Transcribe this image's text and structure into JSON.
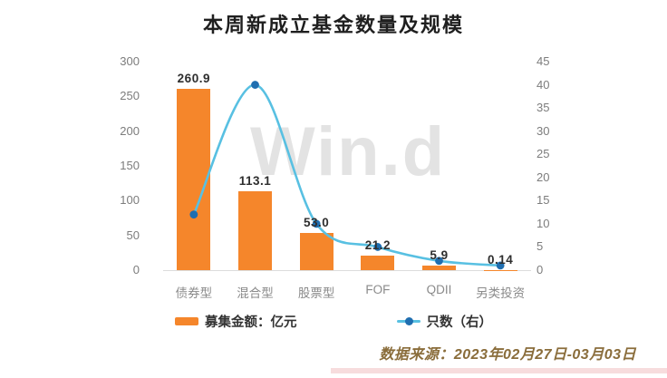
{
  "title": "本周新成立基金数量及规模",
  "watermark": "Win.d",
  "source_note": "数据来源：2023年02月27日-03月03日",
  "legend": [
    {
      "label": "募集金额：亿元",
      "type": "bar"
    },
    {
      "label": "只数（右）",
      "type": "line"
    }
  ],
  "colors": {
    "bar": "#F5862B",
    "line": "#58C0E2",
    "marker": "#1F6EB0",
    "axis_text": "#7c7c7c",
    "bar_label_text": "#2e2e2e",
    "category_text": "#8a8a8a",
    "source_text": "#8a6d3b",
    "watermark": "#c8c8c8",
    "axis_line": "#dcdcdc",
    "source_underline": "#f3c9cb"
  },
  "chart_data": {
    "type": "bar",
    "categories": [
      "债券型",
      "混合型",
      "股票型",
      "FOF",
      "QDII",
      "另类投资"
    ],
    "series": [
      {
        "name": "募集金额：亿元",
        "type": "bar",
        "axis": "left",
        "values": [
          260.9,
          113.1,
          53.0,
          21.2,
          5.9,
          0.14
        ],
        "labels": [
          "260.9",
          "113.1",
          "53.0",
          "21.2",
          "5.9",
          "0.14"
        ]
      },
      {
        "name": "只数（右）",
        "type": "line",
        "axis": "right",
        "values": [
          12,
          40,
          10,
          5,
          2,
          1
        ]
      }
    ],
    "left_axis": {
      "ticks": [
        0,
        50,
        100,
        150,
        200,
        250,
        300
      ],
      "min": 0,
      "max": 300
    },
    "right_axis": {
      "ticks": [
        0,
        5,
        10,
        15,
        20,
        25,
        30,
        35,
        40,
        45
      ],
      "min": 0,
      "max": 45
    },
    "grid": false,
    "legend_position": "bottom"
  }
}
